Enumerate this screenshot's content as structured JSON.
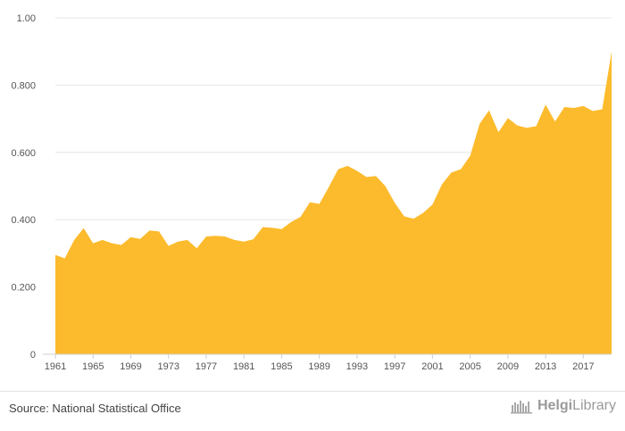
{
  "chart_data": {
    "type": "area",
    "color": "#fcbb2d",
    "ylim": [
      0,
      1.0
    ],
    "yticks": [
      0,
      0.2,
      0.4,
      0.6,
      0.8,
      1.0
    ],
    "ytick_labels": [
      "0",
      "0.200",
      "0.400",
      "0.600",
      "0.800",
      "1.00"
    ],
    "xlim": [
      1961,
      2020
    ],
    "xticks": [
      1961,
      1965,
      1969,
      1973,
      1977,
      1981,
      1985,
      1989,
      1993,
      1997,
      2001,
      2005,
      2009,
      2013,
      2017
    ],
    "xtick_labels": [
      "1961",
      "1965",
      "1969",
      "1973",
      "1977",
      "1981",
      "1985",
      "1989",
      "1993",
      "1997",
      "2001",
      "2005",
      "2009",
      "2013",
      "2017"
    ],
    "grid": true,
    "x": [
      1961,
      1962,
      1963,
      1964,
      1965,
      1966,
      1967,
      1968,
      1969,
      1970,
      1971,
      1972,
      1973,
      1974,
      1975,
      1976,
      1977,
      1978,
      1979,
      1980,
      1981,
      1982,
      1983,
      1984,
      1985,
      1986,
      1987,
      1988,
      1989,
      1990,
      1991,
      1992,
      1993,
      1994,
      1995,
      1996,
      1997,
      1998,
      1999,
      2000,
      2001,
      2002,
      2003,
      2004,
      2005,
      2006,
      2007,
      2008,
      2009,
      2010,
      2011,
      2012,
      2013,
      2014,
      2015,
      2016,
      2017,
      2018,
      2019,
      2020
    ],
    "values": [
      0.295,
      0.285,
      0.34,
      0.375,
      0.33,
      0.34,
      0.33,
      0.325,
      0.348,
      0.343,
      0.368,
      0.365,
      0.322,
      0.335,
      0.34,
      0.315,
      0.35,
      0.352,
      0.35,
      0.34,
      0.335,
      0.342,
      0.378,
      0.376,
      0.372,
      0.393,
      0.408,
      0.452,
      0.447,
      0.497,
      0.55,
      0.56,
      0.545,
      0.527,
      0.53,
      0.5,
      0.45,
      0.41,
      0.403,
      0.42,
      0.445,
      0.505,
      0.54,
      0.55,
      0.59,
      0.685,
      0.725,
      0.66,
      0.702,
      0.68,
      0.673,
      0.678,
      0.742,
      0.692,
      0.735,
      0.732,
      0.738,
      0.723,
      0.728,
      0.9
    ]
  },
  "footer": {
    "source": "Source: National Statistical Office",
    "brand_bold": "Helgi",
    "brand_regular": "Library",
    "brand_icon": "helgi-library-logo-icon"
  }
}
